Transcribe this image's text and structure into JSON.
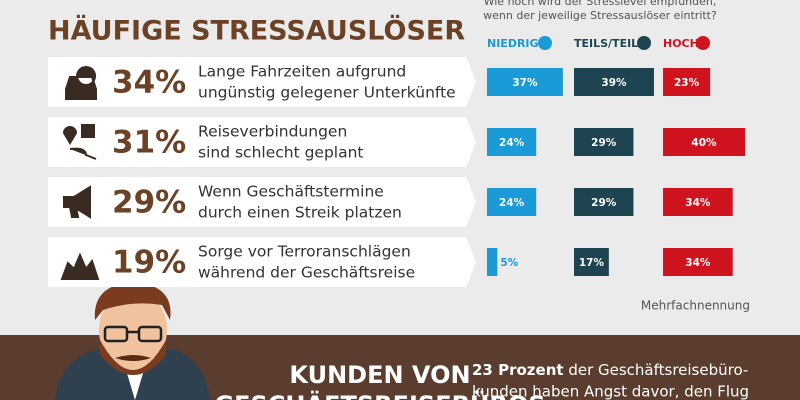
{
  "header": {
    "title": "HÄUFIGE STRESSAUSLÖSER",
    "question": [
      "Wie hoch wird der Stresslevel empfunden,",
      "wenn der jeweilige Stressauslöser eintritt?"
    ]
  },
  "legend": [
    {
      "name": "NIEDRIG",
      "color": "#1a9ad6"
    },
    {
      "name": "TEILS/TEILS",
      "color": "#1d4450"
    },
    {
      "name": "HOCH",
      "color": "#d0141f"
    }
  ],
  "rows": [
    {
      "share": "34%",
      "text": [
        "Lange Fahrzeiten aufgrund",
        "ungünstig gelegener Unterkünfte"
      ],
      "values": [
        37,
        39,
        23
      ],
      "value_labels": [
        "37%",
        "39%",
        "23%"
      ]
    },
    {
      "share": "31%",
      "text": [
        "Reiseverbindungen",
        "sind schlecht geplant"
      ],
      "values": [
        24,
        29,
        40
      ],
      "value_labels": [
        "24%",
        "29%",
        "40%"
      ]
    },
    {
      "share": "29%",
      "text": [
        "Wenn Geschäftstermine",
        "durch einen Streik platzen"
      ],
      "values": [
        24,
        29,
        34
      ],
      "value_labels": [
        "24%",
        "29%",
        "34%"
      ]
    },
    {
      "share": "19%",
      "text": [
        "Sorge vor Terroranschlägen",
        "während der Geschäftsreise"
      ],
      "values": [
        5,
        17,
        34
      ],
      "value_labels": [
        "5%",
        "17%",
        "34%"
      ]
    }
  ],
  "note": "Mehrfachnennung",
  "footer": {
    "heading": [
      "KUNDEN VON",
      "GESCHÄFTSREISEBÜROS"
    ],
    "bold": "23 Prozent",
    "text": [
      " der Geschäftsreisebüro-",
      "kunden haben Angst davor, den Flug"
    ]
  }
}
